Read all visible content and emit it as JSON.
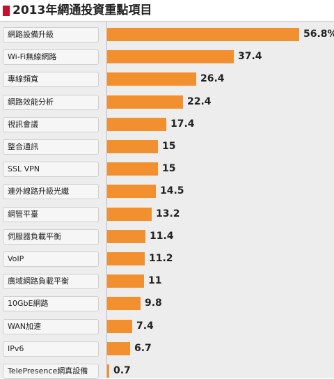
{
  "chart_data": {
    "type": "bar",
    "title": "2013年網通投資重點項目",
    "categories": [
      "網路設備升級",
      "Wi-Fi無線網路",
      "專線頻寬",
      "網路效能分析",
      "視訊會議",
      "整合通訊",
      "SSL VPN",
      "連外線路升級光纖",
      "網管平臺",
      "伺服器負載平衡",
      "VoIP",
      "廣域網路負載平衡",
      "10GbE網路",
      "WAN加速",
      "IPv6",
      "TelePresence網真設備"
    ],
    "values": [
      56.8,
      37.4,
      26.4,
      22.4,
      17.4,
      15,
      15,
      14.5,
      13.2,
      11.4,
      11.2,
      11,
      9.8,
      7.4,
      6.7,
      0.7
    ],
    "value_labels": [
      "56.8%",
      "37.4",
      "26.4",
      "22.4",
      "17.4",
      "15",
      "15",
      "14.5",
      "13.2",
      "11.4",
      "11.2",
      "11",
      "9.8",
      "7.4",
      "6.7",
      "0.7"
    ],
    "bar_color": "#f28f2f",
    "accent_color": "#c8102e",
    "xlim": [
      0,
      56.8
    ]
  }
}
